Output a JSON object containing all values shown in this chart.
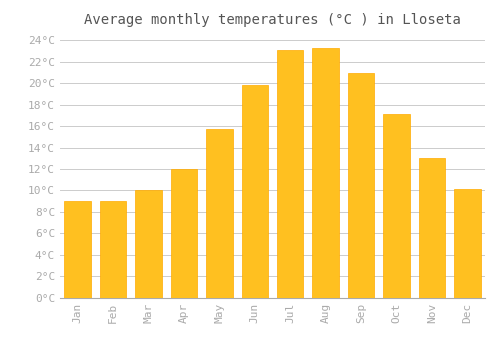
{
  "title": "Average monthly temperatures (°C ) in Lloseta",
  "months": [
    "Jan",
    "Feb",
    "Mar",
    "Apr",
    "May",
    "Jun",
    "Jul",
    "Aug",
    "Sep",
    "Oct",
    "Nov",
    "Dec"
  ],
  "values": [
    9,
    9,
    10,
    12,
    15.7,
    19.8,
    23.1,
    23.3,
    21,
    17.1,
    13,
    10.1
  ],
  "bar_color": "#FFC020",
  "bar_edge_color": "#FFAA00",
  "background_color": "#FFFFFF",
  "grid_color": "#CCCCCC",
  "tick_label_color": "#AAAAAA",
  "title_color": "#555555",
  "ylim": [
    0,
    24
  ],
  "ytick_step": 2,
  "title_fontsize": 10,
  "tick_fontsize": 8,
  "bar_width": 0.75
}
